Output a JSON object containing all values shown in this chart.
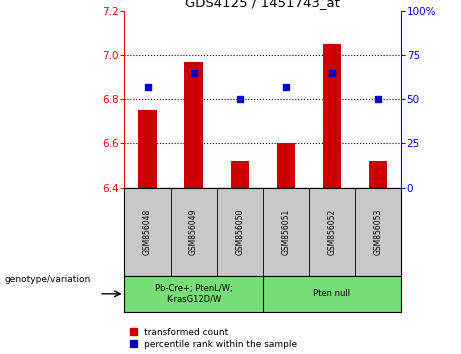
{
  "title": "GDS4125 / 1451743_at",
  "samples": [
    "GSM856048",
    "GSM856049",
    "GSM856050",
    "GSM856051",
    "GSM856052",
    "GSM856053"
  ],
  "red_values": [
    6.75,
    6.97,
    6.52,
    6.6,
    7.05,
    6.52
  ],
  "blue_values": [
    57,
    65,
    50,
    57,
    65,
    50
  ],
  "ylim_left": [
    6.4,
    7.2
  ],
  "ylim_right": [
    0,
    100
  ],
  "yticks_left": [
    6.4,
    6.6,
    6.8,
    7.0,
    7.2
  ],
  "yticks_right": [
    0,
    25,
    50,
    75,
    100
  ],
  "ytick_labels_right": [
    "0",
    "25",
    "50",
    "75",
    "100%"
  ],
  "hlines": [
    6.6,
    6.8,
    7.0
  ],
  "bar_bottom": 6.4,
  "bar_color": "#cc0000",
  "blue_color": "#0000cc",
  "group1_label": "Pb-Cre+; PtenL/W;\nK-rasG12D/W",
  "group2_label": "Pten null",
  "group1_indices": [
    0,
    1,
    2
  ],
  "group2_indices": [
    3,
    4,
    5
  ],
  "genotype_label": "genotype/variation",
  "legend_red": "transformed count",
  "legend_blue": "percentile rank within the sample",
  "tick_area_color": "#c8c8c8",
  "group_box_color": "#77dd77",
  "bar_width": 0.4
}
